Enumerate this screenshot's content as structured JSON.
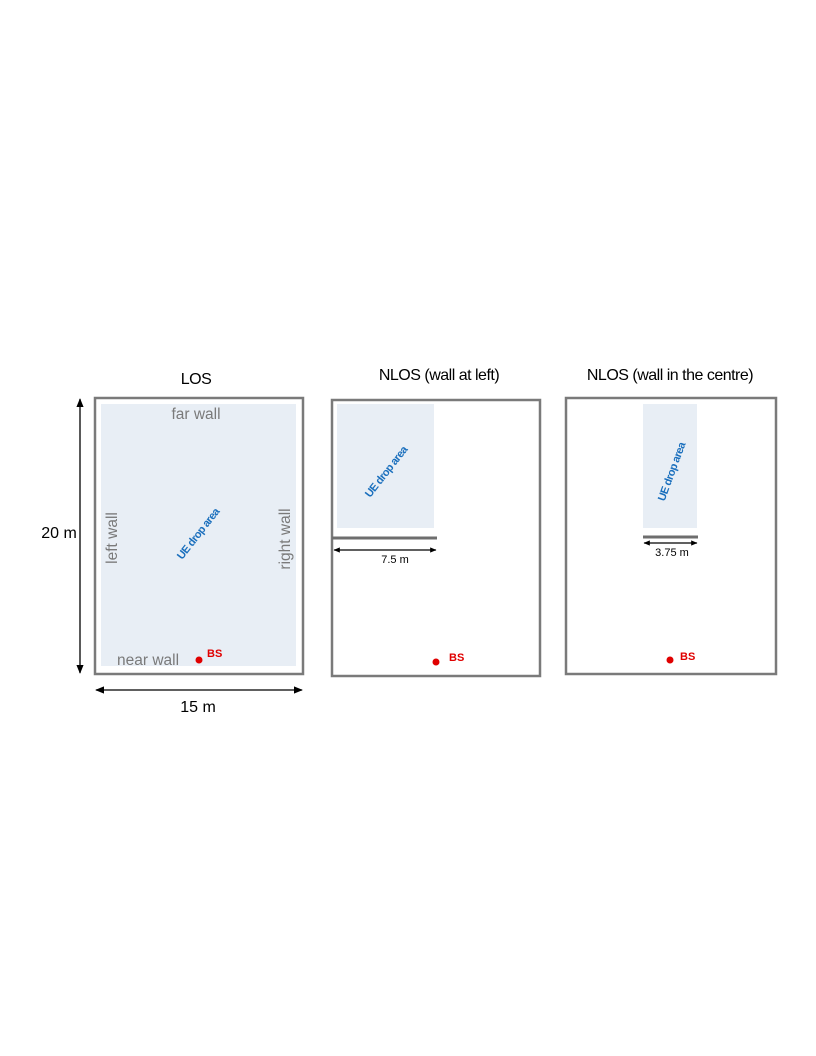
{
  "panels": {
    "los": {
      "title": "LOS",
      "far_wall": "far wall",
      "near_wall": "near wall",
      "left_wall": "left wall",
      "right_wall": "right wall",
      "ue_label": "UE drop area",
      "bs_label": "BS"
    },
    "nlos_left": {
      "title": "NLOS (wall at left)",
      "ue_label": "UE drop area",
      "wall_length": "7.5 m",
      "bs_label": "BS"
    },
    "nlos_centre": {
      "title": "NLOS (wall in the centre)",
      "ue_label": "UE drop area",
      "wall_length": "3.75 m",
      "bs_label": "BS"
    }
  },
  "dimensions": {
    "height": "20 m",
    "width": "15 m"
  },
  "colors": {
    "wall": "#7a7a7a",
    "drop_area": "#e8eef5",
    "ue_text": "#1a6fbd",
    "bs": "#e00000"
  }
}
